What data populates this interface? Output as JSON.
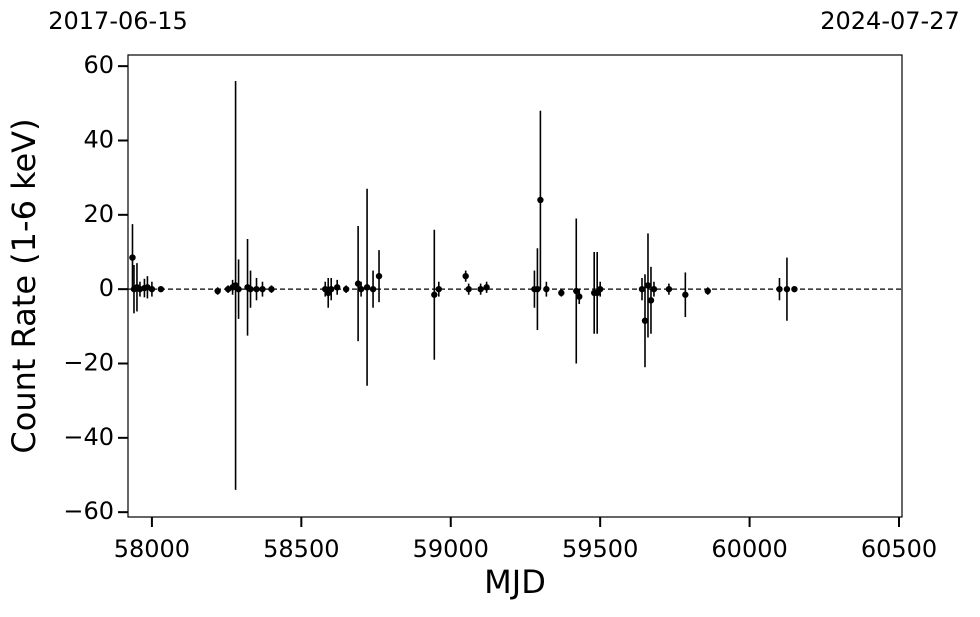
{
  "chart_data": {
    "type": "errorbar",
    "xlabel": "MJD",
    "ylabel": "Count Rate (1-6 keV)",
    "top_labels": [
      "2017-06-15",
      "2024-07-27"
    ],
    "xlim": [
      57920,
      60510
    ],
    "ylim": [
      -61.3,
      63
    ],
    "xticks": [
      58000,
      58500,
      59000,
      59500,
      60000,
      60500
    ],
    "yticks": [
      {
        "value": -60,
        "label": "−60"
      },
      {
        "value": -40,
        "label": "−40"
      },
      {
        "value": -20,
        "label": "−20"
      },
      0,
      20,
      40,
      60
    ],
    "hline": 0,
    "color": "#000000",
    "x": [
      57935,
      57940,
      57950,
      57960,
      57975,
      57985,
      58000,
      58030,
      58220,
      58255,
      58270,
      58280,
      58290,
      58320,
      58330,
      58350,
      58370,
      58400,
      58580,
      58590,
      58600,
      58620,
      58650,
      58690,
      58700,
      58720,
      58740,
      58760,
      58945,
      58960,
      59050,
      59060,
      59100,
      59120,
      59280,
      59290,
      59300,
      59320,
      59370,
      59420,
      59430,
      59480,
      59490,
      59500,
      59640,
      59650,
      59660,
      59670,
      59680,
      59730,
      59785,
      59860,
      60100,
      60125,
      60150
    ],
    "values": [
      8.5,
      0,
      0.5,
      0,
      0.3,
      0.5,
      0,
      0,
      -0.5,
      0,
      0.5,
      1,
      0,
      0.5,
      0,
      0,
      0,
      0,
      0,
      -1,
      0,
      0.5,
      0,
      1.5,
      0,
      0.5,
      0,
      3.5,
      -1.5,
      0,
      3.5,
      0,
      0,
      0.5,
      0,
      0,
      24,
      0,
      -1,
      -0.5,
      -2,
      -1,
      -1,
      0,
      0,
      -8.5,
      1,
      -3,
      0,
      0,
      -1.5,
      -0.5,
      0,
      0,
      0
    ],
    "errors": [
      9,
      6.5,
      6.5,
      2,
      2.5,
      3,
      2,
      0.5,
      1,
      1,
      2,
      55,
      8,
      13,
      5,
      3,
      2,
      1,
      2,
      4,
      3,
      2,
      1,
      15.5,
      2,
      26.5,
      5,
      7,
      17.5,
      2,
      1.5,
      1.5,
      1.5,
      1.5,
      5,
      11,
      24,
      2,
      1,
      19.5,
      2,
      11,
      11,
      2,
      3,
      12.5,
      14,
      9,
      2,
      1.5,
      6,
      1,
      3,
      8.5,
      0.5
    ]
  }
}
